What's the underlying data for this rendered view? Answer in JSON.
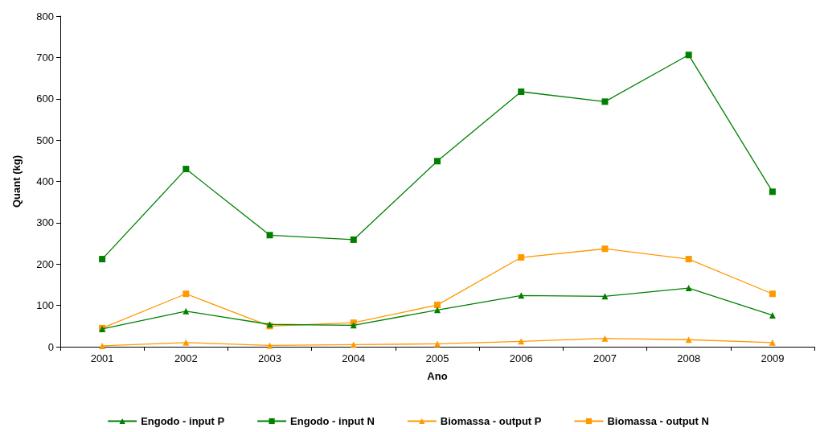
{
  "chart_data": {
    "type": "line",
    "xlabel": "Ano",
    "ylabel": "Quant (kg)",
    "categories": [
      "2001",
      "2002",
      "2003",
      "2004",
      "2005",
      "2006",
      "2007",
      "2008",
      "2009"
    ],
    "series": [
      {
        "name": "Engodo - input P",
        "color": "#008000",
        "marker": "triangle",
        "values": [
          43,
          86,
          54,
          52,
          89,
          124,
          122,
          142,
          76
        ]
      },
      {
        "name": "Engodo - input N",
        "color": "#008000",
        "marker": "square",
        "values": [
          212,
          430,
          270,
          259,
          449,
          617,
          593,
          706,
          375
        ]
      },
      {
        "name": "Biomassa - output P",
        "color": "#ff9900",
        "marker": "triangle",
        "values": [
          2,
          10,
          3,
          5,
          7,
          13,
          20,
          17,
          10
        ]
      },
      {
        "name": "Biomassa - output N",
        "color": "#ff9900",
        "marker": "square",
        "values": [
          45,
          128,
          50,
          58,
          101,
          216,
          237,
          212,
          128
        ]
      }
    ],
    "ylim": [
      0,
      800
    ],
    "yticks": [
      0,
      100,
      200,
      300,
      400,
      500,
      600,
      700,
      800
    ],
    "grid": false,
    "legend": "bottom",
    "line_style": "solid"
  }
}
